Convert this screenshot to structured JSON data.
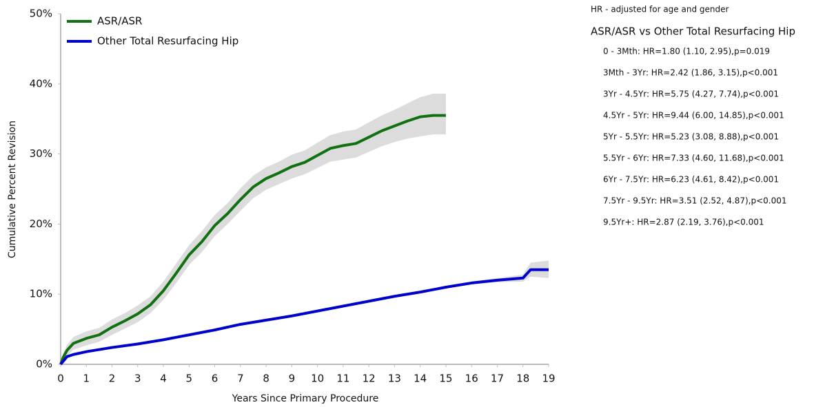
{
  "chart_data": {
    "type": "line",
    "x_label": "Years Since Primary Procedure",
    "y_label": "Cumulative Percent Revision",
    "xlim": [
      0,
      19
    ],
    "ylim": [
      0,
      50
    ],
    "xticks": [
      0,
      1,
      2,
      3,
      4,
      5,
      6,
      7,
      8,
      9,
      10,
      11,
      12,
      13,
      14,
      15,
      16,
      17,
      18,
      19
    ],
    "yticks": [
      {
        "value": 0,
        "label": "0%"
      },
      {
        "value": 10,
        "label": "10%"
      },
      {
        "value": 20,
        "label": "20%"
      },
      {
        "value": 30,
        "label": "30%"
      },
      {
        "value": 40,
        "label": "40%"
      },
      {
        "value": 50,
        "label": "50%"
      }
    ],
    "band_color": "#dcdcdc",
    "legend_position": "upper left",
    "series": [
      {
        "name": "ASR/ASR",
        "color": "#117011",
        "x": [
          0,
          0.1,
          0.25,
          0.5,
          1,
          1.5,
          2,
          2.5,
          3,
          3.5,
          4,
          4.5,
          5,
          5.5,
          6,
          6.5,
          7,
          7.5,
          8,
          8.5,
          9,
          9.5,
          10,
          10.5,
          11,
          11.5,
          12,
          12.5,
          13,
          13.5,
          14,
          14.5,
          15
        ],
        "values": [
          0,
          1,
          2,
          3,
          3.7,
          4.2,
          5.3,
          6.2,
          7.2,
          8.5,
          10.5,
          13,
          15.6,
          17.5,
          19.8,
          21.5,
          23.5,
          25.3,
          26.5,
          27.3,
          28.2,
          28.8,
          29.8,
          30.8,
          31.2,
          31.5,
          32.4,
          33.3,
          34,
          34.7,
          35.3,
          35.5,
          35.5
        ],
        "ci_upper": [
          0,
          1.6,
          2.8,
          3.9,
          4.7,
          5.2,
          6.4,
          7.3,
          8.4,
          9.7,
          11.8,
          14.4,
          17,
          19,
          21.3,
          23,
          25.1,
          26.9,
          28.1,
          28.9,
          29.9,
          30.5,
          31.6,
          32.7,
          33.2,
          33.5,
          34.5,
          35.5,
          36.3,
          37.2,
          38.1,
          38.6,
          38.6
        ],
        "ci_lower": [
          0,
          0.4,
          1.2,
          2.1,
          2.7,
          3.2,
          4.2,
          5.1,
          6,
          7.3,
          9.2,
          11.6,
          14.2,
          16,
          18.3,
          20,
          21.9,
          23.7,
          24.9,
          25.7,
          26.5,
          27.1,
          28,
          28.9,
          29.2,
          29.5,
          30.3,
          31.1,
          31.7,
          32.2,
          32.5,
          32.8,
          32.8
        ]
      },
      {
        "name": "Other Total Resurfacing Hip",
        "color": "#0000cc",
        "x": [
          0,
          0.25,
          0.5,
          1,
          2,
          3,
          4,
          5,
          6,
          7,
          8,
          9,
          10,
          11,
          12,
          13,
          14,
          15,
          16,
          17,
          18,
          18.3,
          19
        ],
        "values": [
          0,
          1.1,
          1.4,
          1.8,
          2.4,
          2.9,
          3.5,
          4.2,
          4.9,
          5.7,
          6.3,
          6.9,
          7.6,
          8.3,
          9,
          9.7,
          10.3,
          11,
          11.6,
          12,
          12.3,
          13.5,
          13.5
        ],
        "ci_upper": [
          0,
          1.2,
          1.5,
          1.9,
          2.5,
          3,
          3.6,
          4.3,
          5,
          5.8,
          6.4,
          7,
          7.7,
          8.4,
          9.1,
          9.8,
          10.5,
          11.2,
          11.8,
          12.3,
          12.8,
          14.5,
          14.8
        ],
        "ci_lower": [
          0,
          1,
          1.3,
          1.7,
          2.3,
          2.8,
          3.4,
          4.1,
          4.8,
          5.6,
          6.2,
          6.8,
          7.5,
          8.2,
          8.9,
          9.6,
          10.1,
          10.8,
          11.4,
          11.7,
          11.8,
          12.5,
          12.3
        ]
      }
    ],
    "annotations": {
      "note": "HR - adjusted for age and gender",
      "heading": "ASR/ASR vs Other Total Resurfacing Hip",
      "lines": [
        "0 - 3Mth: HR=1.80 (1.10, 2.95),p=0.019",
        "3Mth - 3Yr: HR=2.42 (1.86, 3.15),p<0.001",
        "3Yr - 4.5Yr: HR=5.75 (4.27, 7.74),p<0.001",
        "4.5Yr - 5Yr: HR=9.44 (6.00, 14.85),p<0.001",
        "5Yr - 5.5Yr: HR=5.23 (3.08, 8.88),p<0.001",
        "5.5Yr - 6Yr: HR=7.33 (4.60, 11.68),p<0.001",
        "6Yr - 7.5Yr: HR=6.23 (4.61, 8.42),p<0.001",
        "7.5Yr - 9.5Yr: HR=3.51 (2.52, 4.87),p<0.001",
        "9.5Yr+: HR=2.87 (2.19, 3.76),p<0.001"
      ]
    }
  }
}
